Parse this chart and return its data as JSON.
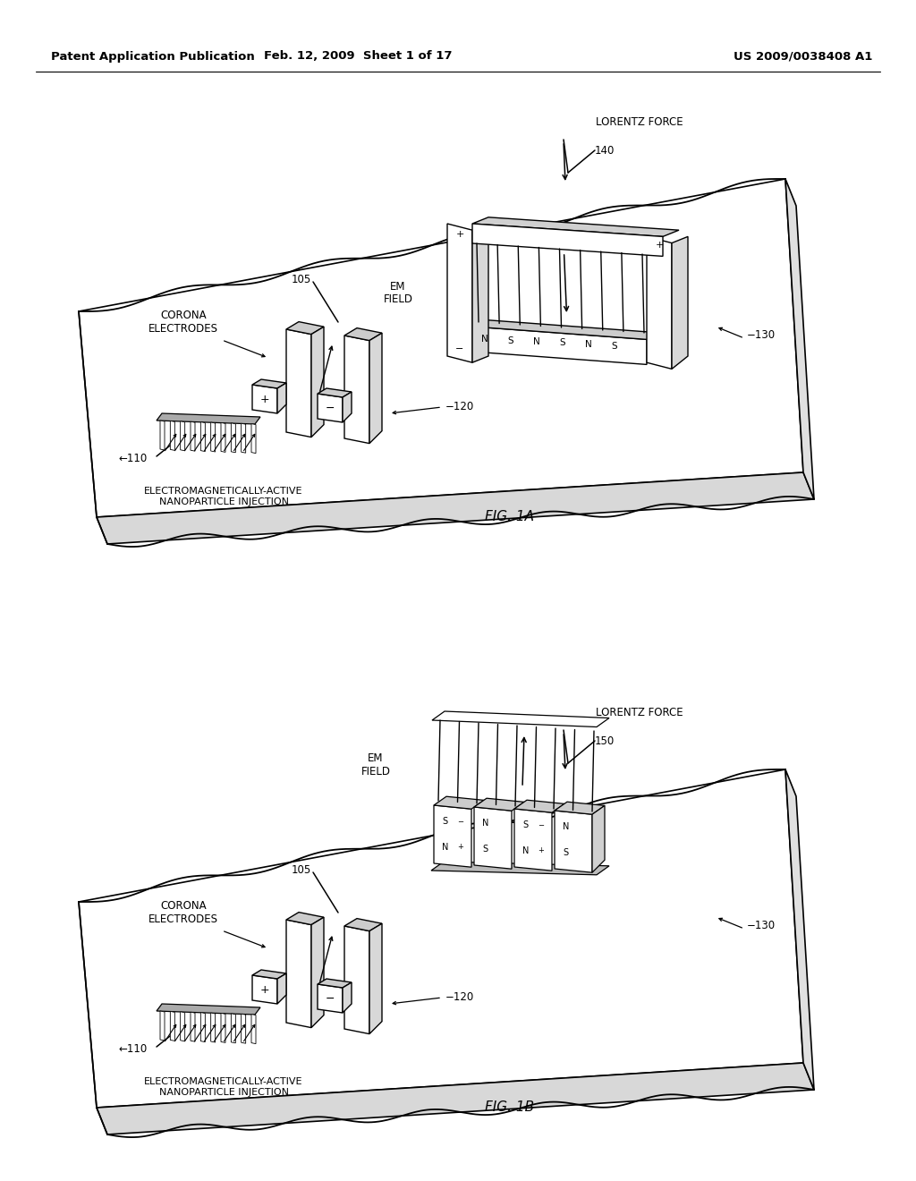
{
  "bg": "#ffffff",
  "lc": "#000000",
  "header_left": "Patent Application Publication",
  "header_mid": "Feb. 12, 2009  Sheet 1 of 17",
  "header_right": "US 2009/0038408 A1",
  "fig1a": "FIG. 1A",
  "fig1b": "FIG. 1B",
  "lorentz": "LORENTZ FORCE",
  "em_field": "EM\nFIELD",
  "corona": "CORONA\nELECTRODES",
  "nano": "ELECTROMAGNETICALLY-ACTIVE\nNANOPARTICLE INJECTION",
  "n140": "140",
  "n150": "150",
  "n105": "105",
  "n110": "←110",
  "n120": "−120",
  "n130": "−130"
}
